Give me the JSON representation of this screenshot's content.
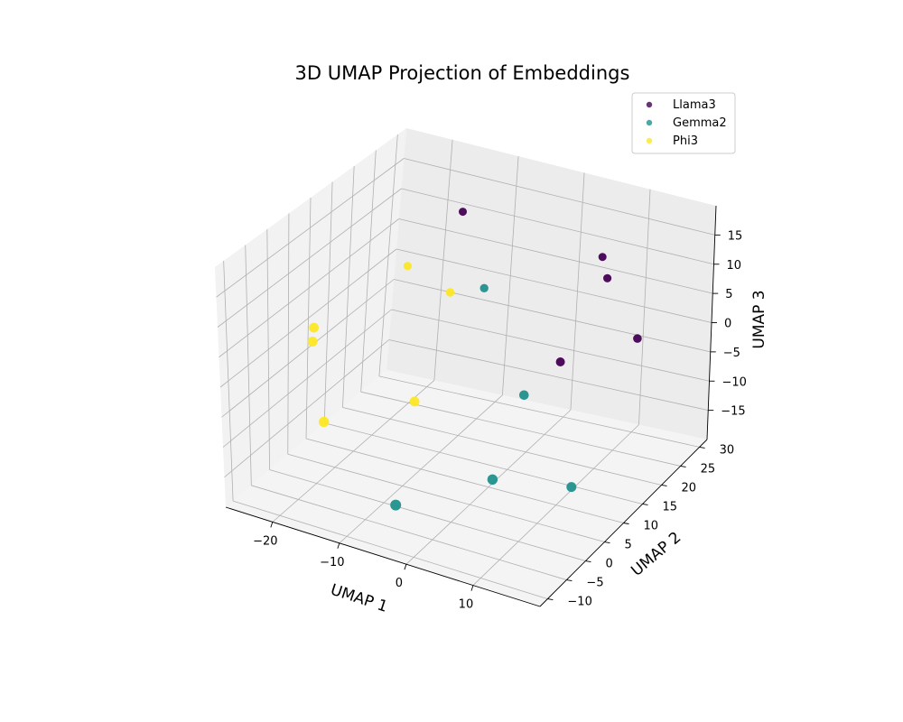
{
  "chart_data": {
    "type": "scatter",
    "title": "3D UMAP Projection of Embeddings",
    "xlabel": "UMAP 1",
    "ylabel": "UMAP 2",
    "zlabel": "UMAP 3",
    "xlim": [
      -27,
      20
    ],
    "ylim": [
      -12,
      32
    ],
    "zlim": [
      -20,
      20
    ],
    "xticks": [
      -20,
      -10,
      0,
      10
    ],
    "yticks": [
      -10,
      -5,
      0,
      5,
      10,
      15,
      20,
      25,
      30
    ],
    "zticks": [
      -15,
      -10,
      -5,
      0,
      5,
      10,
      15
    ],
    "legend_position": "top-right",
    "grid": true,
    "series": [
      {
        "name": "Llama3",
        "color": "#440154",
        "points": [
          {
            "x": -13,
            "y": 24,
            "z": 14
          },
          {
            "x": 8,
            "y": 24,
            "z": 12
          },
          {
            "x": 10,
            "y": 22,
            "z": 10
          },
          {
            "x": 8,
            "y": 14,
            "z": 0
          },
          {
            "x": 17,
            "y": 18,
            "z": 4
          }
        ]
      },
      {
        "name": "Gemma2",
        "color": "#21918c",
        "points": [
          {
            "x": -7,
            "y": 20,
            "z": 5
          },
          {
            "x": 5,
            "y": 10,
            "z": -4
          },
          {
            "x": 5,
            "y": 2,
            "z": -13
          },
          {
            "x": 15,
            "y": 5,
            "z": -13
          },
          {
            "x": -6,
            "y": -4,
            "z": -17
          }
        ]
      },
      {
        "name": "Phi3",
        "color": "#fde725",
        "points": [
          {
            "x": -19,
            "y": 21,
            "z": 5
          },
          {
            "x": -12,
            "y": 20,
            "z": 3
          },
          {
            "x": -25,
            "y": 8,
            "z": 0
          },
          {
            "x": -24,
            "y": 6,
            "z": -1
          },
          {
            "x": -20,
            "y": 2,
            "z": -11
          },
          {
            "x": -10,
            "y": 8,
            "z": -8
          }
        ]
      }
    ]
  }
}
